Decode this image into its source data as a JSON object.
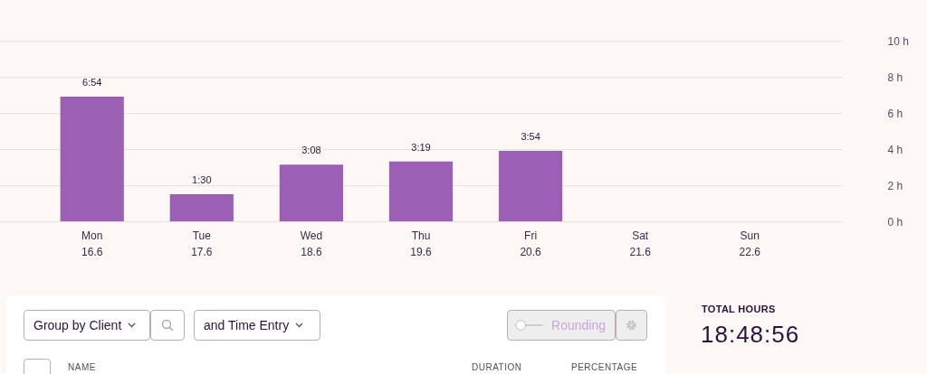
{
  "chart_data": [
    {
      "type": "bar",
      "categories": [
        "Mon\n16.6",
        "Tue\n17.6",
        "Wed\n18.6",
        "Thu\n19.6",
        "Fri\n20.6",
        "Sat\n21.6",
        "Sun\n22.6"
      ],
      "values": [
        6.9,
        1.5,
        3.133,
        3.317,
        3.9,
        null,
        null
      ],
      "value_labels": [
        "6:54",
        "1:30",
        "3:08",
        "3:19",
        "3:54",
        null,
        null
      ],
      "color": "#9b5fb5",
      "ylim": [
        0,
        10
      ],
      "yticks": [
        {
          "value": 0,
          "label": "0 h"
        },
        {
          "value": 2,
          "label": "2 h"
        },
        {
          "value": 4,
          "label": "4 h"
        },
        {
          "value": 6,
          "label": "6 h"
        },
        {
          "value": 8,
          "label": "8 h"
        },
        {
          "value": 10,
          "label": "10 h"
        }
      ],
      "grid": "y"
    },
    {
      "type": "other",
      "annotations": [
        "Group by Client",
        "and Time Entry",
        "Rounding",
        "TOTAL HOURS",
        "18:48:56",
        "NAME",
        "DURATION",
        "PERCENTAGE"
      ]
    }
  ]
}
